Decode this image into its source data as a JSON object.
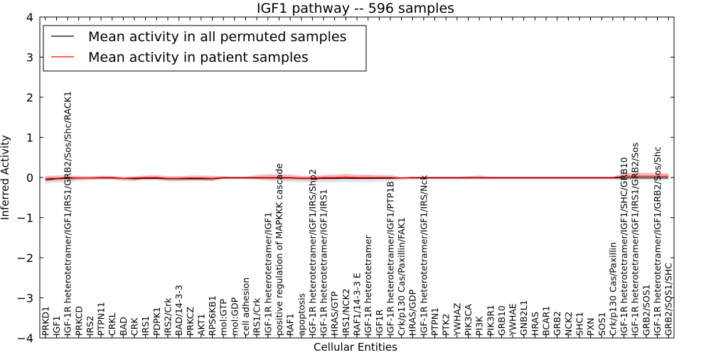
{
  "chart_data": {
    "type": "line",
    "title": "IGF1 pathway -- 596 samples",
    "xlabel": "Cellular Entities",
    "ylabel": "Inferred Activity",
    "ylim": [
      -4,
      4
    ],
    "yticks": [
      -4,
      -3,
      -2,
      -1,
      0,
      1,
      2,
      3,
      4
    ],
    "ytick_labels": [
      "−4",
      "−3",
      "−2",
      "−1",
      "0",
      "1",
      "2",
      "3",
      "4"
    ],
    "legend": {
      "location": "top-left",
      "entries": [
        {
          "label": "Mean activity in all permuted samples",
          "color": "#000000"
        },
        {
          "label": "Mean activity in patient samples",
          "color": "#ff0000"
        }
      ]
    },
    "categories": [
      "PRKD1",
      "IGF1",
      "IGF-1R heterotetramer/IGF1/IRS1/GRB2/Sos/Shc/RACK1",
      "PRKCD",
      "IRS2",
      "PTPN11",
      "CRKL",
      "BAD",
      "CRK",
      "IRS1",
      "PDPK1",
      "IRS2/Crk",
      "BAD/14-3-3",
      "PRKCZ",
      "AKT1",
      "RPS6KB1",
      "mol:GTP",
      "mol:GDP",
      "cell adhesion",
      "IRS1/Crk",
      "IGF-1R heterotetramer/IGF1",
      "positive regulation of MAPKKK cascade",
      "RAF1",
      "apoptosis",
      "IGF-1R heterotetramer/IGF1/IRS/Shp2",
      "IGF-1R heterotetramer/IGF1/IRS1",
      "HRAS/GTP",
      "IRS1/NCK2",
      "RAF1/14-3-3 E",
      "IGF-1R heterotetramer",
      "IGF1R",
      "IGF-1R heterotetramer/IGF1/PTP1B",
      "Crk/p130 Cas/Paxillin/FAK1",
      "HRAS/GDP",
      "IGF-1R heterotetramer/IGF1/IRS/Nck",
      "PTPN1",
      "PTK2",
      "YWHAZ",
      "PIK3CA",
      "PI3K",
      "PIK3R1",
      "GRB10",
      "YWHAE",
      "GNB2L1",
      "HRAS",
      "BCAR1",
      "GRB2",
      "NCK2",
      "SHC1",
      "PXN",
      "SOS1",
      "Crk/p130 Cas/Paxillin",
      "IGF-1R heterotetramer/IGF1/SHC/GRB10",
      "IGF-1R heterotetramer/IGF1/IRS1/GRB2/Sos",
      "GRB2/SOS1",
      "IGF-1R heterotetramer/IGF1/GRB2/Sos/Shc",
      "GRB2/SOS1/SHC"
    ],
    "series": [
      {
        "name": "Mean activity in all permuted samples",
        "color": "#000000",
        "values": [
          -0.06,
          -0.03,
          -0.02,
          -0.01,
          -0.01,
          -0.01,
          -0.01,
          -0.02,
          -0.03,
          -0.02,
          -0.02,
          -0.03,
          -0.03,
          -0.03,
          -0.03,
          -0.03,
          -0.01,
          -0.01,
          -0.01,
          -0.01,
          -0.01,
          -0.01,
          -0.01,
          -0.02,
          -0.02,
          -0.02,
          -0.02,
          -0.02,
          -0.02,
          -0.02,
          -0.02,
          -0.02,
          -0.01,
          -0.01,
          -0.01,
          -0.01,
          -0.01,
          -0.01,
          -0.01,
          -0.01,
          -0.01,
          -0.01,
          -0.01,
          -0.01,
          -0.01,
          -0.01,
          -0.01,
          -0.01,
          -0.01,
          -0.01,
          -0.01,
          -0.01,
          -0.01,
          -0.01,
          -0.01,
          -0.01,
          -0.01
        ],
        "band": {
          "color": "#d9d9e3",
          "upper": [
            0.02,
            0.02,
            0.02,
            0.02,
            0.02,
            0.02,
            0.02,
            0.02,
            0.02,
            0.02,
            0.02,
            0.02,
            0.02,
            0.02,
            0.02,
            0.02,
            0.02,
            0.02,
            0.02,
            0.02,
            0.02,
            0.02,
            0.02,
            0.02,
            0.02,
            0.02,
            0.02,
            0.02,
            0.02,
            0.02,
            0.02,
            0.02,
            0.02,
            0.02,
            0.02,
            0.02,
            0.02,
            0.02,
            0.02,
            0.02,
            0.02,
            0.02,
            0.02,
            0.02,
            0.02,
            0.02,
            0.02,
            0.02,
            0.02,
            0.02,
            0.02,
            0.02,
            0.02,
            0.02,
            0.02,
            0.02,
            0.02
          ],
          "lower": [
            -0.1,
            -0.1,
            -0.1,
            -0.08,
            -0.06,
            -0.05,
            -0.05,
            -0.06,
            -0.08,
            -0.06,
            -0.06,
            -0.07,
            -0.07,
            -0.07,
            -0.06,
            -0.06,
            -0.04,
            -0.04,
            -0.04,
            -0.05,
            -0.08,
            -0.09,
            -0.1,
            -0.1,
            -0.1,
            -0.1,
            -0.1,
            -0.1,
            -0.1,
            -0.1,
            -0.08,
            -0.07,
            -0.06,
            -0.05,
            -0.05,
            -0.05,
            -0.05,
            -0.05,
            -0.05,
            -0.05,
            -0.05,
            -0.05,
            -0.05,
            -0.05,
            -0.05,
            -0.05,
            -0.05,
            -0.05,
            -0.05,
            -0.05,
            -0.05,
            -0.05,
            -0.06,
            -0.06,
            -0.06,
            -0.06,
            -0.06
          ]
        }
      },
      {
        "name": "Mean activity in patient samples",
        "color": "#ff0000",
        "values": [
          -0.02,
          -0.02,
          0.0,
          -0.01,
          -0.01,
          0.0,
          0.0,
          -0.02,
          -0.01,
          0.0,
          0.0,
          -0.02,
          -0.02,
          -0.01,
          -0.01,
          -0.02,
          0.0,
          0.0,
          0.0,
          0.0,
          0.0,
          0.0,
          0.0,
          -0.01,
          -0.01,
          0.0,
          0.0,
          0.01,
          0.0,
          0.0,
          0.0,
          0.0,
          -0.01,
          0.0,
          0.0,
          0.0,
          0.0,
          0.0,
          0.0,
          0.0,
          0.0,
          0.0,
          0.0,
          0.0,
          0.0,
          0.0,
          0.0,
          0.0,
          0.0,
          0.0,
          0.0,
          0.0,
          0.03,
          0.03,
          0.03,
          0.03,
          0.03
        ],
        "band": {
          "color": "#f08080",
          "upper": [
            0.06,
            0.07,
            0.05,
            0.05,
            0.04,
            0.04,
            0.04,
            0.03,
            0.04,
            0.05,
            0.06,
            0.05,
            0.05,
            0.06,
            0.06,
            0.06,
            0.03,
            0.02,
            0.02,
            0.06,
            0.08,
            0.08,
            0.07,
            0.05,
            0.05,
            0.06,
            0.07,
            0.08,
            0.07,
            0.07,
            0.06,
            0.06,
            0.02,
            0.02,
            0.02,
            0.02,
            0.02,
            0.02,
            0.03,
            0.05,
            0.02,
            0.02,
            0.02,
            0.02,
            0.02,
            0.02,
            0.02,
            0.02,
            0.02,
            0.02,
            0.02,
            0.02,
            0.07,
            0.09,
            0.09,
            0.08,
            0.07
          ],
          "lower": [
            -0.07,
            -0.06,
            -0.07,
            -0.05,
            -0.04,
            -0.04,
            -0.04,
            -0.05,
            -0.05,
            -0.05,
            -0.05,
            -0.06,
            -0.06,
            -0.06,
            -0.06,
            -0.07,
            -0.02,
            -0.02,
            -0.02,
            -0.04,
            -0.05,
            -0.06,
            -0.06,
            -0.06,
            -0.06,
            -0.06,
            -0.06,
            -0.05,
            -0.05,
            -0.05,
            -0.04,
            -0.04,
            -0.03,
            -0.02,
            -0.02,
            -0.02,
            -0.02,
            -0.02,
            -0.02,
            -0.02,
            -0.02,
            -0.02,
            -0.02,
            -0.02,
            -0.02,
            -0.02,
            -0.02,
            -0.02,
            -0.02,
            -0.02,
            -0.02,
            -0.02,
            -0.02,
            -0.02,
            -0.02,
            -0.02,
            -0.02
          ]
        }
      }
    ]
  }
}
